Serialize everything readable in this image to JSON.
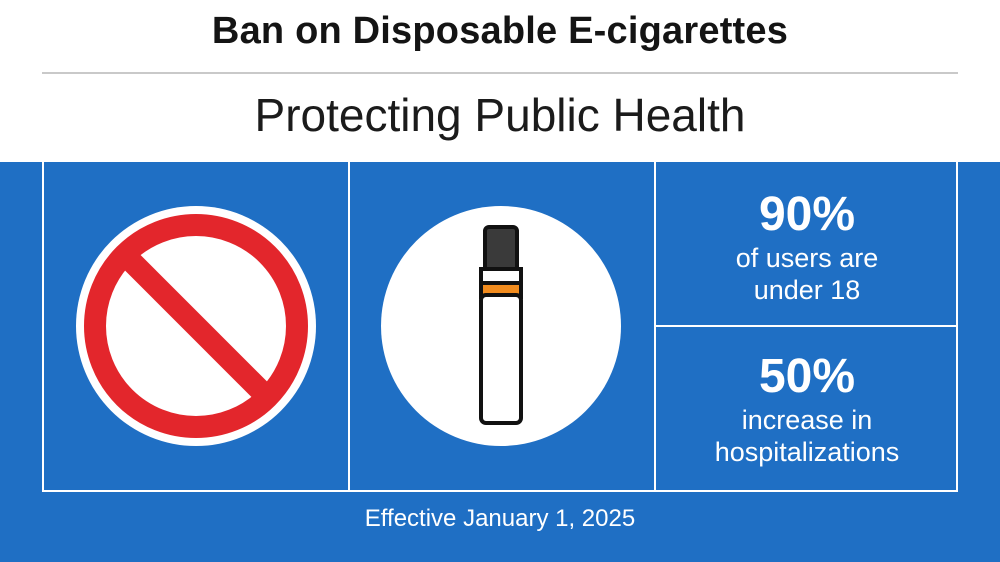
{
  "header": {
    "title": "Ban on Disposable E-cigarettes",
    "subtitle": "Protecting Public Health"
  },
  "icons": {
    "prohibition": "prohibition-icon",
    "ecigarette": "e-cigarette-icon"
  },
  "stats": [
    {
      "value": "90%",
      "label_line1": "of users are",
      "label_line2": "under 18"
    },
    {
      "value": "50%",
      "label_line1": "increase in",
      "label_line2": "hospitalizations"
    }
  ],
  "footer": {
    "effective": "Effective January 1, 2025"
  },
  "colors": {
    "panel_blue": "#1f6fc4",
    "prohibition_red": "#e3262c",
    "device_orange": "#f28c1e"
  }
}
